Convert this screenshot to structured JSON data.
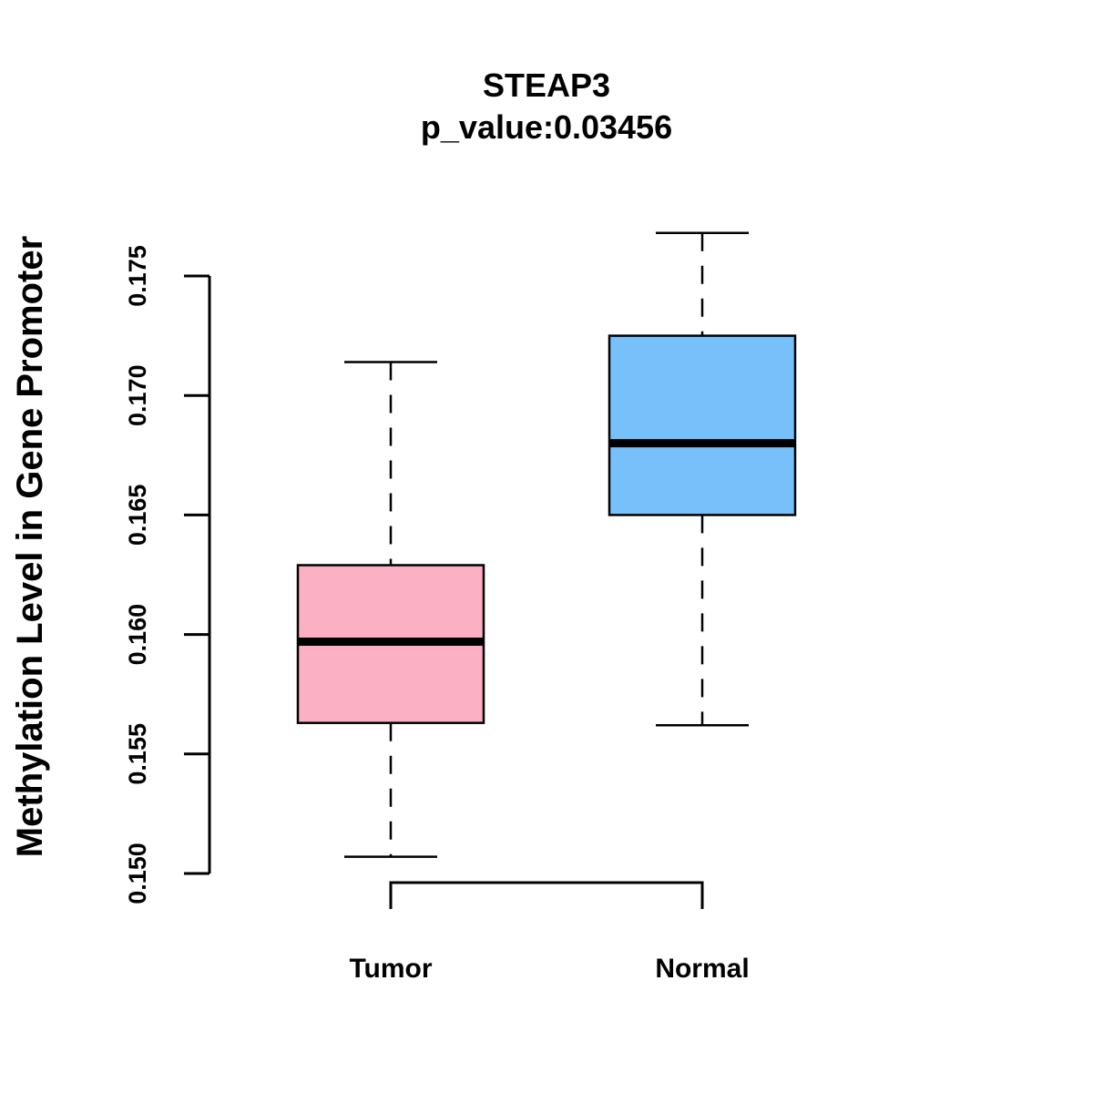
{
  "chart_data": {
    "type": "boxplot",
    "title": "STEAP3",
    "subtitle": "p_value:0.03456",
    "xlabel": "",
    "ylabel": "Methylation Level in Gene Promoter",
    "ylim": [
      0.15,
      0.175
    ],
    "yticks": [
      {
        "value": 0.15,
        "label": "0.150"
      },
      {
        "value": 0.155,
        "label": "0.155"
      },
      {
        "value": 0.16,
        "label": "0.160"
      },
      {
        "value": 0.165,
        "label": "0.165"
      },
      {
        "value": 0.17,
        "label": "0.170"
      },
      {
        "value": 0.175,
        "label": "0.175"
      }
    ],
    "categories": [
      "Tumor",
      "Normal"
    ],
    "boxes": [
      {
        "name": "Tumor",
        "min": 0.1507,
        "q1": 0.1563,
        "median": 0.1597,
        "q3": 0.1629,
        "max": 0.1714,
        "color": "#FBB1C3"
      },
      {
        "name": "Normal",
        "min": 0.1562,
        "q1": 0.165,
        "median": 0.168,
        "q3": 0.1725,
        "max": 0.1768,
        "color": "#78C0F9"
      }
    ],
    "comparison_bracket": [
      "Tumor",
      "Normal"
    ],
    "grid": false
  }
}
